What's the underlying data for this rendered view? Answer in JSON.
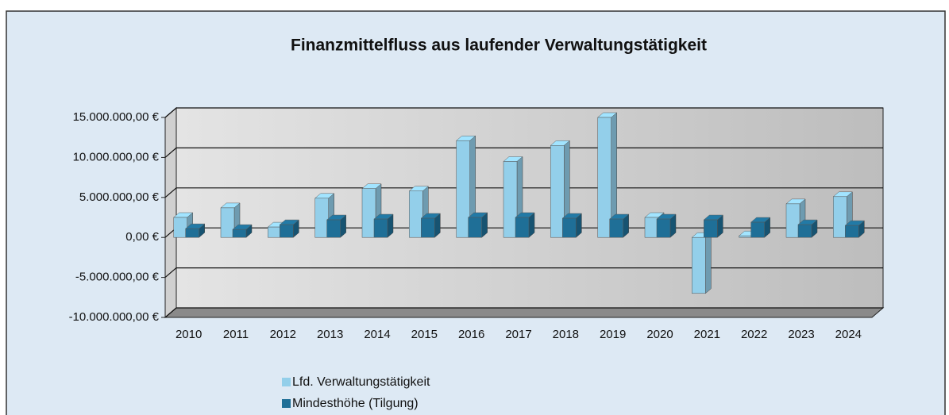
{
  "chart_data": {
    "type": "bar3d",
    "title": "Finanzmittelfluss aus laufender Verwaltungstätigkeit",
    "categories": [
      "2010",
      "2011",
      "2012",
      "2013",
      "2014",
      "2015",
      "2016",
      "2017",
      "2018",
      "2019",
      "2020",
      "2021",
      "2022",
      "2023",
      "2024"
    ],
    "series": [
      {
        "name": "Lfd. Verwaltungstätigkeit",
        "color": "#93cfea",
        "values": [
          2500000,
          3700000,
          1300000,
          4900000,
          6100000,
          5800000,
          12100000,
          9500000,
          11500000,
          15000000,
          2500000,
          -7000000,
          200000,
          4200000,
          5100000
        ]
      },
      {
        "name": "Mindesthöhe (Tilgung)",
        "color": "#1f6f97",
        "values": [
          1100000,
          1000000,
          1600000,
          2200000,
          2300000,
          2400000,
          2500000,
          2500000,
          2400000,
          2300000,
          2300000,
          2200000,
          1900000,
          1600000,
          1500000
        ]
      }
    ],
    "ylim": [
      -10000000,
      15000000
    ],
    "yticks": [
      {
        "value": -10000000,
        "label": "-10.000.000,00 €"
      },
      {
        "value": -5000000,
        "label": "-5.000.000,00 €"
      },
      {
        "value": 0,
        "label": "0,00 €"
      },
      {
        "value": 5000000,
        "label": "5.000.000,00 €"
      },
      {
        "value": 10000000,
        "label": "10.000.000,00 €"
      },
      {
        "value": 15000000,
        "label": "15.000.000,00 €"
      }
    ],
    "grid": true,
    "legend": "bottom-left"
  }
}
